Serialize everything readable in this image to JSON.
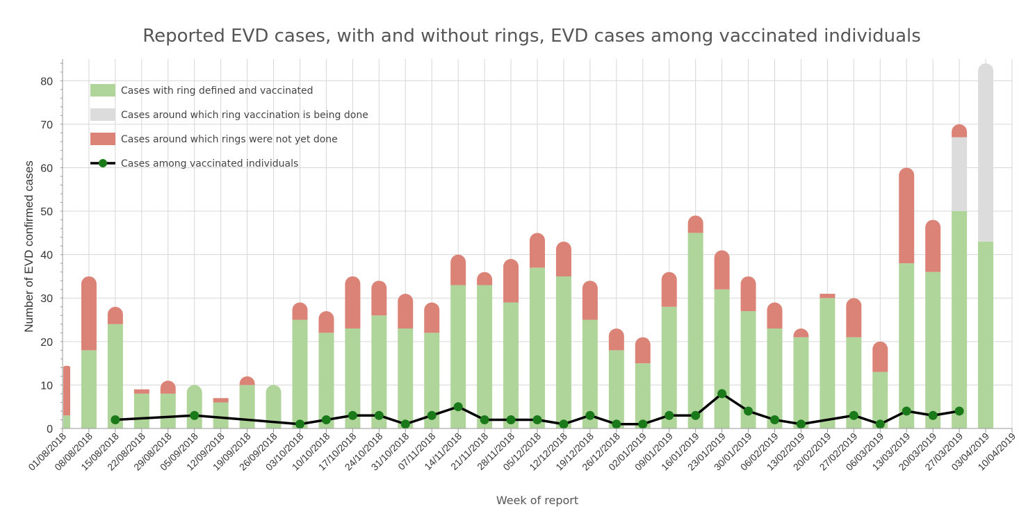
{
  "chart_data": {
    "type": "bar",
    "title": "Reported EVD cases, with and without rings, EVD cases among vaccinated individuals",
    "xlabel": "Week of report",
    "ylabel": "Number of EVD confirmed cases",
    "ylim": [
      0,
      85
    ],
    "yticks": [
      0,
      10,
      20,
      30,
      40,
      50,
      60,
      70,
      80
    ],
    "stacked": true,
    "grid": true,
    "legend_position": "top-left",
    "categories": [
      "01/08/2018",
      "08/08/2018",
      "15/08/2018",
      "22/08/2018",
      "29/08/2018",
      "05/09/2018",
      "12/09/2018",
      "19/09/2018",
      "26/09/2018",
      "03/10/2018",
      "10/10/2018",
      "17/10/2018",
      "24/10/2018",
      "31/10/2018",
      "07/11/2018",
      "14/11/2018",
      "21/11/2018",
      "28/11/2018",
      "05/12/2018",
      "12/12/2018",
      "19/12/2018",
      "26/12/2018",
      "02/01/2019",
      "09/01/2019",
      "16/01/2019",
      "23/01/2019",
      "30/01/2019",
      "06/02/2019",
      "13/02/2019",
      "20/02/2019",
      "27/02/2019",
      "06/03/2019",
      "13/03/2019",
      "20/03/2019",
      "27/03/2019",
      "03/04/2019",
      "10/04/2019"
    ],
    "series": [
      {
        "name": "Cases with ring defined and vaccinated",
        "kind": "bar",
        "color": "#b0d59a",
        "values": [
          3,
          18,
          24,
          8,
          8,
          10,
          6,
          10,
          10,
          25,
          22,
          23,
          26,
          23,
          22,
          33,
          33,
          29,
          37,
          35,
          25,
          18,
          15,
          28,
          45,
          32,
          27,
          23,
          21,
          30,
          21,
          13,
          38,
          36,
          50,
          43,
          null
        ]
      },
      {
        "name": "Cases around which ring vaccination is being done",
        "kind": "bar",
        "color": "#dcdcdc",
        "values": [
          0,
          0,
          0,
          0,
          0,
          0,
          0,
          0,
          0,
          0,
          0,
          0,
          0,
          0,
          0,
          0,
          0,
          0,
          0,
          0,
          0,
          0,
          0,
          0,
          0,
          0,
          0,
          0,
          0,
          0,
          0,
          0,
          0,
          0,
          17,
          41,
          null
        ]
      },
      {
        "name": "Cases around which rings were not yet done",
        "kind": "bar",
        "color": "#dc8378",
        "values": [
          13,
          17,
          4,
          1,
          3,
          0,
          1,
          2,
          0,
          4,
          5,
          12,
          8,
          8,
          7,
          7,
          3,
          10,
          8,
          8,
          9,
          5,
          6,
          8,
          4,
          9,
          8,
          6,
          2,
          1,
          9,
          7,
          22,
          12,
          3,
          0,
          null
        ]
      },
      {
        "name": "Cases among vaccinated individuals",
        "kind": "line",
        "color": "#000000",
        "marker_color": "#1a7a1a",
        "values": [
          null,
          null,
          2,
          null,
          null,
          3,
          null,
          null,
          null,
          1,
          2,
          3,
          3,
          1,
          3,
          5,
          2,
          2,
          2,
          1,
          3,
          1,
          1,
          3,
          3,
          8,
          4,
          2,
          1,
          null,
          3,
          1,
          4,
          3,
          4,
          null,
          null
        ]
      }
    ]
  }
}
